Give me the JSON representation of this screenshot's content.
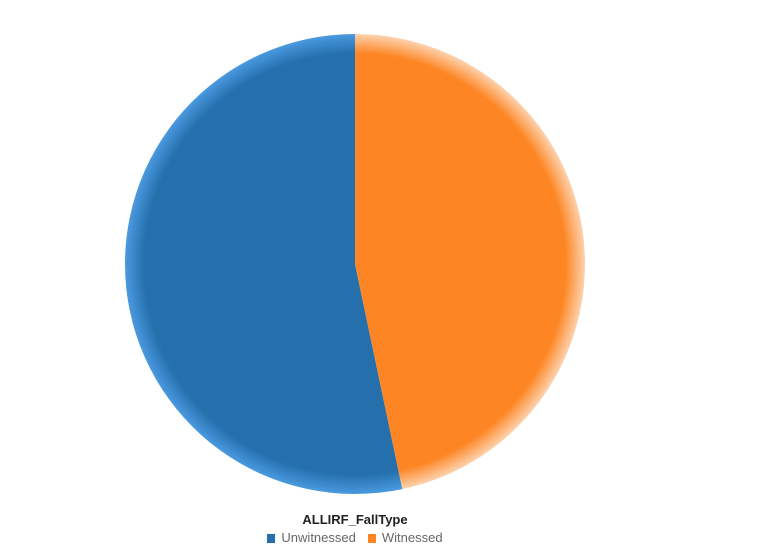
{
  "chart_data": {
    "type": "pie",
    "title": "",
    "legend_title": "ALLIRF_FallType",
    "legend_position": "bottom",
    "categories": [
      "Unwitnessed",
      "Witnessed"
    ],
    "values": [
      53.3,
      46.7
    ],
    "colors": [
      "#246fac",
      "#fd8523"
    ],
    "rim_colors": [
      "#4a9ae0",
      "#fdd2ae"
    ]
  }
}
